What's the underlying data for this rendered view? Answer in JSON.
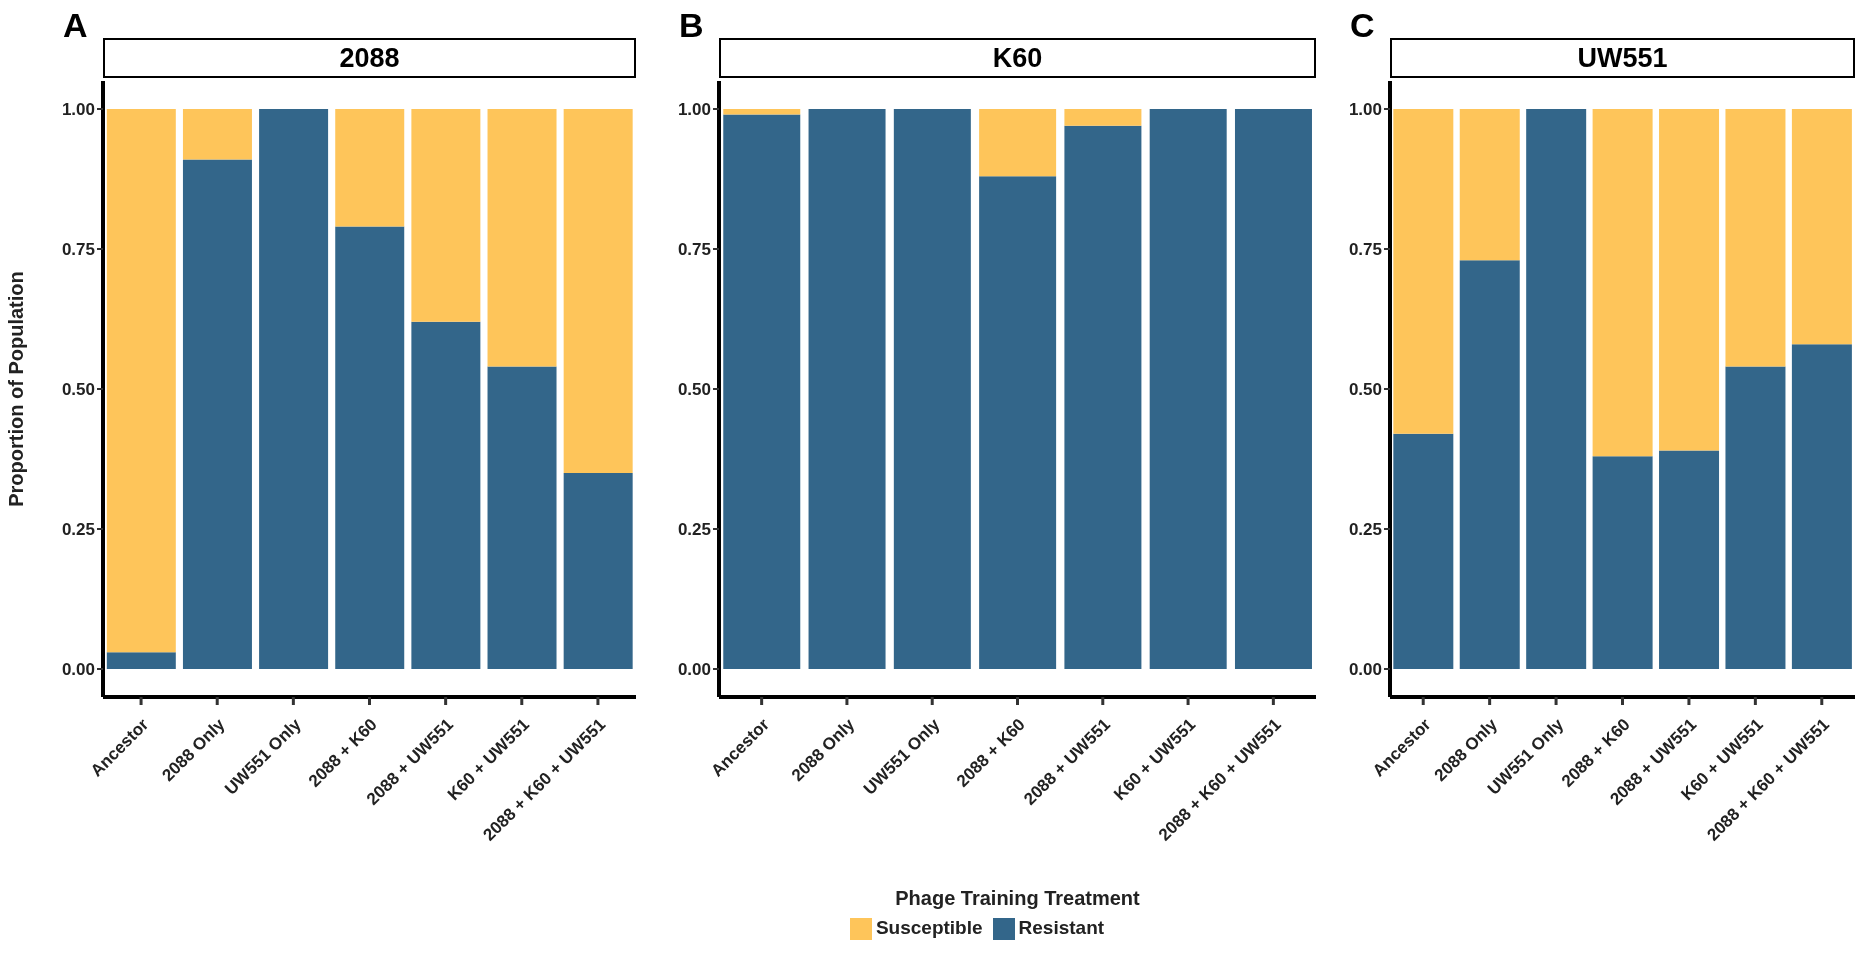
{
  "chart_data": [
    {
      "type": "bar",
      "stacked": true,
      "title": "2088",
      "annotations": [
        "A"
      ],
      "ylabel": "Proportion of Population",
      "categories": [
        "Ancestor",
        "2088 Only",
        "UW551 Only",
        "2088 + K60",
        "2088 + UW551",
        "K60 + UW551",
        "2088 + K60 + UW551"
      ],
      "ylim": [
        -0.05,
        1.05
      ],
      "yticks": [
        {
          "value": 0,
          "label": "0.00"
        },
        {
          "value": 0.25,
          "label": "0.25"
        },
        {
          "value": 0.5,
          "label": "0.50"
        },
        {
          "value": 0.75,
          "label": "0.75"
        },
        {
          "value": 1,
          "label": "1.00"
        }
      ],
      "grid": false,
      "legend": false,
      "series": [
        {
          "color": "#33668a",
          "values": [
            0.03,
            0.91,
            1.0,
            0.79,
            0.62,
            0.54,
            0.35
          ]
        },
        {
          "color": "#fec55a",
          "values": [
            0.97,
            0.09,
            0.0,
            0.21,
            0.38,
            0.46,
            0.65
          ]
        }
      ]
    },
    {
      "type": "bar",
      "stacked": true,
      "title": "K60",
      "annotations": [
        "B"
      ],
      "xlabel": "Phage Training Treatment",
      "categories": [
        "Ancestor",
        "2088 Only",
        "UW551 Only",
        "2088 + K60",
        "2088 + UW551",
        "K60 + UW551",
        "2088 + K60 + UW551"
      ],
      "ylim": [
        -0.05,
        1.05
      ],
      "yticks": [
        {
          "value": 0,
          "label": "0.00"
        },
        {
          "value": 0.25,
          "label": "0.25"
        },
        {
          "value": 0.5,
          "label": "0.50"
        },
        {
          "value": 0.75,
          "label": "0.75"
        },
        {
          "value": 1,
          "label": "1.00"
        }
      ],
      "grid": false,
      "legend": "bottom",
      "series": [
        {
          "name": "Resistant",
          "color": "#33668a",
          "values": [
            0.99,
            1.0,
            1.0,
            0.88,
            0.97,
            1.0,
            1.0
          ]
        },
        {
          "name": "Susceptible",
          "color": "#fec55a",
          "values": [
            0.01,
            0.0,
            0.0,
            0.12,
            0.03,
            0.0,
            0.0
          ]
        }
      ]
    },
    {
      "type": "bar",
      "stacked": true,
      "title": "UW551",
      "annotations": [
        "C"
      ],
      "categories": [
        "Ancestor",
        "2088 Only",
        "UW551 Only",
        "2088 + K60",
        "2088 + UW551",
        "K60 + UW551",
        "2088 + K60 + UW551"
      ],
      "ylim": [
        -0.05,
        1.05
      ],
      "yticks": [
        {
          "value": 0,
          "label": "0.00"
        },
        {
          "value": 0.25,
          "label": "0.25"
        },
        {
          "value": 0.5,
          "label": "0.50"
        },
        {
          "value": 0.75,
          "label": "0.75"
        },
        {
          "value": 1,
          "label": "1.00"
        }
      ],
      "grid": false,
      "legend": false,
      "series": [
        {
          "color": "#33668a",
          "values": [
            0.42,
            0.73,
            1.0,
            0.38,
            0.39,
            0.54,
            0.58
          ]
        },
        {
          "color": "#fec55a",
          "values": [
            0.58,
            0.27,
            0.0,
            0.62,
            0.61,
            0.46,
            0.42
          ]
        }
      ]
    }
  ]
}
